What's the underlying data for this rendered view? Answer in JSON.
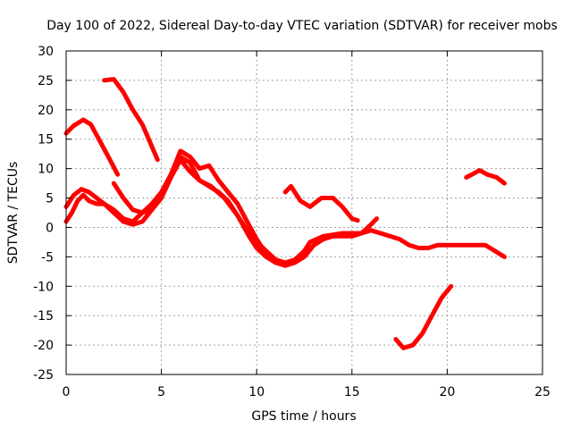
{
  "chart_data": {
    "type": "line",
    "title": "Day 100 of 2022, Sidereal Day-to-day VTEC variation (SDTVAR) for receiver mobs",
    "xlabel": "GPS time / hours",
    "ylabel": "SDTVAR / TECUs",
    "xlim": [
      0,
      25
    ],
    "ylim": [
      -25,
      30
    ],
    "xticks": [
      0,
      5,
      10,
      15,
      20,
      25
    ],
    "yticks": [
      -25,
      -20,
      -15,
      -10,
      -5,
      0,
      5,
      10,
      15,
      20,
      25,
      30
    ],
    "grid": true,
    "legend": "none",
    "color": "#ff0000",
    "series": [
      {
        "name": "trace-1",
        "x": [
          0.0,
          0.4,
          0.9,
          1.3,
          1.8,
          2.3,
          2.7
        ],
        "y": [
          16,
          17.3,
          18.3,
          17.5,
          14.5,
          11.5,
          9
        ]
      },
      {
        "name": "trace-2",
        "x": [
          2.0,
          2.5,
          3.0,
          3.5,
          4.0,
          4.4,
          4.8
        ],
        "y": [
          25,
          25.2,
          23,
          20,
          17.5,
          14.5,
          11.5
        ]
      },
      {
        "name": "trace-3",
        "x": [
          0.0,
          0.3,
          0.6,
          0.9,
          1.2,
          1.6,
          2.0,
          2.5,
          3.0,
          3.5,
          4.0,
          4.5,
          5.0,
          5.5,
          6.0,
          6.5,
          7.0,
          7.6,
          8.3,
          9.0,
          9.6,
          10.0,
          10.5,
          11.0,
          11.5,
          12.0,
          12.5,
          13.0,
          13.5,
          14.0,
          14.5,
          15.0,
          15.5,
          16.0,
          16.5,
          17.0,
          17.5,
          18.0,
          18.5,
          19.0,
          19.5,
          20.0,
          20.5,
          21.0,
          21.5,
          22.0,
          22.5,
          23.0
        ],
        "y": [
          1,
          2.5,
          4.5,
          5.5,
          4.5,
          4,
          4,
          3,
          1.5,
          1,
          2.5,
          4,
          6,
          9,
          12,
          11,
          8,
          7,
          5,
          2,
          -1.5,
          -3.5,
          -5,
          -6,
          -6.5,
          -6,
          -5,
          -3,
          -2,
          -1.5,
          -1.5,
          -1.5,
          -1,
          -0.5,
          -1,
          -1.5,
          -2,
          -3,
          -3.5,
          -3.5,
          -3,
          -3,
          -3,
          -3,
          -3,
          -3,
          -4,
          -5
        ]
      },
      {
        "name": "trace-4",
        "x": [
          0.0,
          0.4,
          0.8,
          1.2,
          1.6,
          2.0,
          2.5,
          3.0,
          3.5,
          4.0,
          4.5,
          5.0,
          5.5,
          6.0,
          6.5,
          7.0,
          7.5,
          8.0,
          8.5,
          9.0,
          9.5,
          10.0,
          10.5,
          11.0,
          11.5,
          12.0,
          12.5
        ],
        "y": [
          3.5,
          5.5,
          6.5,
          6,
          5,
          4,
          2.5,
          1,
          0.5,
          1,
          3,
          5,
          8.5,
          11.5,
          9.5,
          8,
          7,
          6,
          4.5,
          2,
          -0.5,
          -2.5,
          -4,
          -5.5,
          -6,
          -5.5,
          -4
        ]
      },
      {
        "name": "trace-5",
        "x": [
          2.5,
          3.0,
          3.5,
          4.0,
          4.5,
          5.0,
          5.5,
          6.0,
          6.5,
          7.0,
          7.5,
          8.0,
          8.5,
          9.0,
          9.5,
          10.0,
          10.5,
          11.0
        ],
        "y": [
          7.5,
          5,
          3,
          2.5,
          3,
          5.5,
          9,
          13,
          12,
          10,
          10.5,
          8,
          6,
          4,
          1,
          -2,
          -4.5,
          -6
        ]
      },
      {
        "name": "trace-6",
        "x": [
          11.5,
          11.8,
          12.3,
          12.8,
          13.4,
          14.0,
          14.5,
          15.0,
          15.3
        ],
        "y": [
          6,
          7,
          4.5,
          3.5,
          5,
          5,
          3.5,
          1.5,
          1.2
        ]
      },
      {
        "name": "trace-7",
        "x": [
          12.2,
          12.8,
          13.5,
          14.5,
          15.5,
          16.0,
          16.3
        ],
        "y": [
          -5.5,
          -2.5,
          -1.5,
          -1,
          -1,
          0.5,
          1.5
        ]
      },
      {
        "name": "trace-8",
        "x": [
          17.3,
          17.7,
          18.2,
          18.7,
          19.2,
          19.7,
          20.2
        ],
        "y": [
          -19,
          -20.5,
          -20,
          -18,
          -15,
          -12,
          -10
        ]
      },
      {
        "name": "trace-9",
        "x": [
          21.0,
          21.3,
          21.7,
          22.1,
          22.6,
          23.0
        ],
        "y": [
          8.5,
          9,
          9.7,
          9,
          8.5,
          7.5
        ]
      }
    ]
  }
}
